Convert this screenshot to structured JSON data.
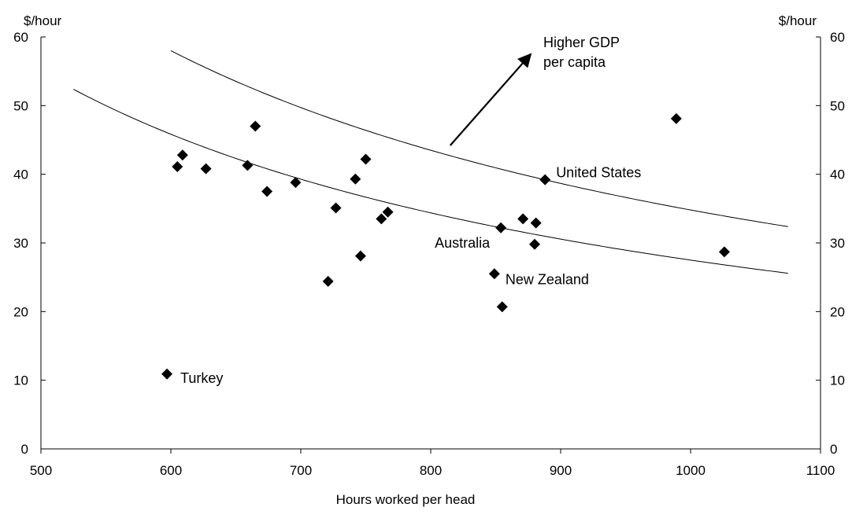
{
  "chart_data": {
    "type": "scatter",
    "xlabel": "Hours worked per head",
    "ylabel_left": "$/hour",
    "ylabel_right": "$/hour",
    "xlim": [
      500,
      1100
    ],
    "ylim": [
      0,
      60
    ],
    "x_ticks": [
      500,
      600,
      700,
      800,
      900,
      1000,
      1100
    ],
    "y_ticks": [
      0,
      10,
      20,
      30,
      40,
      50,
      60
    ],
    "grid": false,
    "legend": "none",
    "marker": "diamond",
    "colors": {
      "points": "#000000",
      "curves": "#000000",
      "axes": "#000000"
    },
    "points": [
      {
        "x": 597,
        "y": 10.9,
        "label": "Turkey"
      },
      {
        "x": 605,
        "y": 41.1
      },
      {
        "x": 609,
        "y": 42.8
      },
      {
        "x": 627,
        "y": 40.8
      },
      {
        "x": 659,
        "y": 41.3
      },
      {
        "x": 665,
        "y": 47.0
      },
      {
        "x": 674,
        "y": 37.5
      },
      {
        "x": 696,
        "y": 38.8
      },
      {
        "x": 721,
        "y": 24.4
      },
      {
        "x": 727,
        "y": 35.1
      },
      {
        "x": 742,
        "y": 39.3
      },
      {
        "x": 746,
        "y": 28.1
      },
      {
        "x": 750,
        "y": 42.2
      },
      {
        "x": 762,
        "y": 33.5
      },
      {
        "x": 767,
        "y": 34.5
      },
      {
        "x": 849,
        "y": 25.5,
        "label": "New Zealand"
      },
      {
        "x": 854,
        "y": 32.2,
        "label": "Australia"
      },
      {
        "x": 855,
        "y": 20.7
      },
      {
        "x": 871,
        "y": 33.5
      },
      {
        "x": 880,
        "y": 29.8
      },
      {
        "x": 881,
        "y": 32.9
      },
      {
        "x": 888,
        "y": 39.2,
        "label": "United States"
      },
      {
        "x": 989,
        "y": 48.1
      },
      {
        "x": 1026,
        "y": 28.7
      }
    ],
    "curves": [
      {
        "x_range": [
          525,
          1075
        ],
        "k": 27500,
        "note": "constant GDP per capita (y = k / x)"
      },
      {
        "x_range": [
          600,
          1075
        ],
        "k": 34800,
        "note": "constant GDP per capita (y = k / x)"
      }
    ],
    "annotations": {
      "arrow_text_line1": "Higher GDP",
      "arrow_text_line2": "per capita",
      "arrow_from": {
        "x": 815,
        "y": 44.2
      },
      "arrow_to": {
        "x": 877,
        "y": 57.5
      }
    }
  }
}
